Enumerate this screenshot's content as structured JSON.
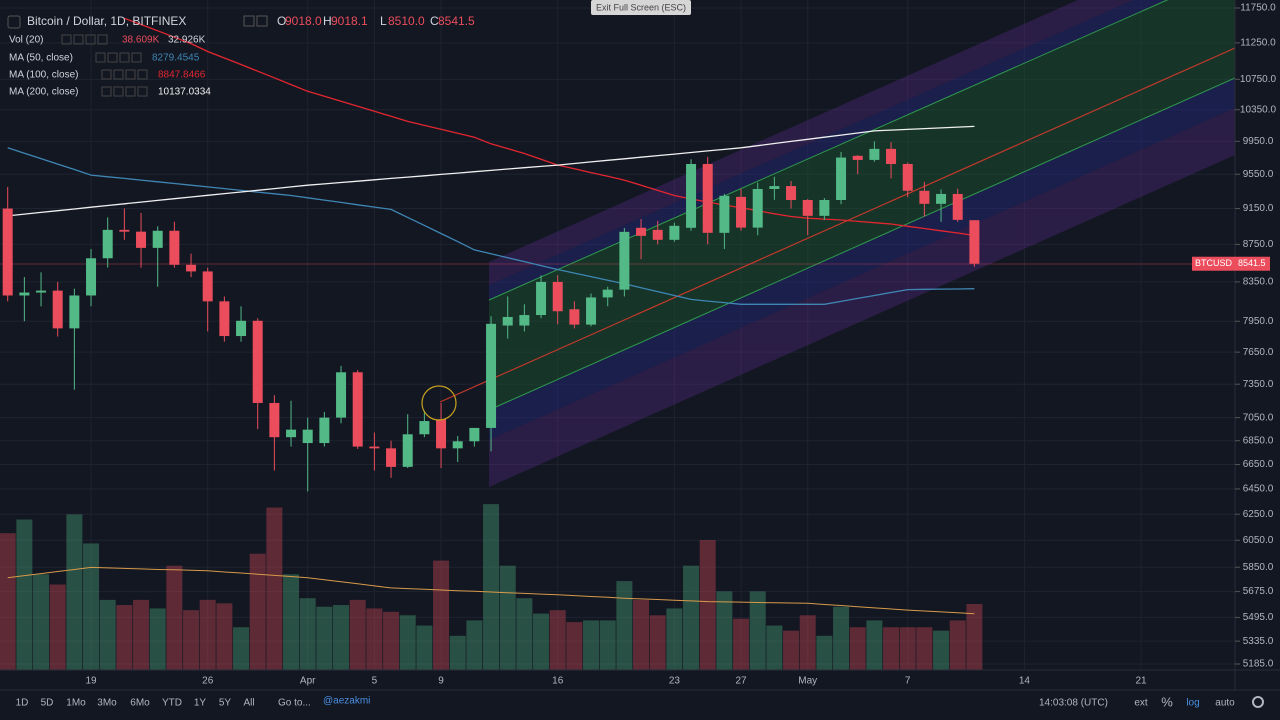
{
  "header": {
    "title": "Bitcoin / Dollar, 1D, BITFINEX",
    "ohlc": [
      {
        "k": "O",
        "v": "9018.0"
      },
      {
        "k": "H",
        "v": "9018.1"
      },
      {
        "k": "L",
        "v": "8510.0"
      },
      {
        "k": "C",
        "v": "8541.5"
      }
    ]
  },
  "exit_label": "Exit Full Screen (ESC)",
  "toolbar": {
    "ranges": [
      "1D",
      "5D",
      "1Mo",
      "3Mo",
      "6Mo",
      "YTD",
      "1Y",
      "5Y",
      "All"
    ],
    "goto": "Go to...",
    "user": "@aezakmi",
    "time": "14:03:08 (UTC)",
    "options": [
      "ext",
      "%",
      "log",
      "auto"
    ]
  },
  "chart_data": {
    "type": "candlestick",
    "log": true,
    "grid": true,
    "up_color": "#53b987",
    "down_color": "#eb4d5c",
    "price_tag": "BTCUSD",
    "categories": [
      null,
      null,
      null,
      null,
      null,
      "19",
      null,
      null,
      null,
      null,
      null,
      null,
      "26",
      null,
      null,
      null,
      null,
      null,
      "Apr",
      null,
      null,
      null,
      "5",
      null,
      null,
      null,
      "9",
      null,
      null,
      null,
      null,
      null,
      null,
      "16",
      null,
      null,
      null,
      null,
      null,
      null,
      "23",
      null,
      null,
      null,
      "27",
      null,
      null,
      null,
      "May",
      null,
      null,
      null,
      null,
      null,
      "7",
      null,
      null,
      null,
      null,
      null,
      null,
      "14",
      null,
      null,
      null,
      null,
      null,
      null,
      "21",
      null,
      null,
      null,
      null
    ],
    "open": [
      9150,
      8210,
      8240,
      8260,
      7880,
      8210,
      8600,
      8910,
      8890,
      8712,
      8900,
      8530,
      8460,
      8150,
      7805,
      7955,
      7180,
      6880,
      6830,
      6830,
      7050,
      7460,
      6800,
      6785,
      6630,
      6905,
      7035,
      6785,
      6845,
      6960,
      7908,
      7908,
      8012,
      8350,
      8070,
      7917,
      8190,
      8270,
      8933,
      8910,
      8800,
      8933,
      9673,
      8877,
      9284,
      8935,
      9376,
      9410,
      9248,
      9067,
      9248,
      9772,
      9722,
      9857,
      9673,
      9355,
      9204,
      9318,
      9018,
      null,
      null,
      null,
      null,
      null,
      null,
      null,
      null,
      null,
      null,
      null,
      null,
      null,
      null
    ],
    "high": [
      9400,
      8400,
      8450,
      8350,
      8280,
      8700,
      9050,
      9150,
      9100,
      8950,
      9000,
      8650,
      8500,
      8200,
      8100,
      7980,
      7250,
      7200,
      7050,
      7100,
      7520,
      7480,
      6920,
      6850,
      7080,
      7110,
      7180,
      6890,
      6960,
      8000,
      8200,
      8120,
      8420,
      8420,
      8150,
      8230,
      8300,
      8930,
      9030,
      9010,
      8990,
      9730,
      9760,
      9320,
      9380,
      9450,
      9520,
      9470,
      9260,
      9270,
      9820,
      9780,
      9950,
      9940,
      9690,
      9460,
      9370,
      9380,
      9018.1,
      null,
      null,
      null,
      null,
      null,
      null,
      null,
      null,
      null,
      null,
      null,
      null,
      null,
      null
    ],
    "low": [
      8150,
      7950,
      8100,
      7800,
      7300,
      8100,
      8500,
      8800,
      8500,
      8300,
      8500,
      8400,
      7850,
      7750,
      7750,
      6950,
      6600,
      6800,
      6430,
      6800,
      7000,
      6780,
      6600,
      6540,
      6620,
      6880,
      6620,
      6670,
      6800,
      6760,
      7780,
      7850,
      7980,
      7920,
      7880,
      7900,
      8100,
      8200,
      8590,
      8750,
      8780,
      8900,
      8750,
      8700,
      8900,
      8850,
      9250,
      9150,
      8850,
      9020,
      9200,
      9550,
      9700,
      9500,
      9280,
      9060,
      9000,
      9000,
      8510,
      null,
      null,
      null,
      null,
      null,
      null,
      null,
      null,
      null,
      null,
      null,
      null,
      null,
      null
    ],
    "close": [
      8210,
      8240,
      8260,
      7880,
      8210,
      8600,
      8910,
      8890,
      8712,
      8900,
      8530,
      8460,
      8150,
      7805,
      7955,
      7180,
      6880,
      6945,
      6945,
      7050,
      7460,
      6800,
      6785,
      6630,
      6905,
      7020,
      6785,
      6845,
      6960,
      7925,
      7993,
      8012,
      8350,
      8050,
      7917,
      8190,
      8270,
      8888,
      8844,
      8800,
      8955,
      9673,
      8877,
      9297,
      8935,
      9376,
      9410,
      9248,
      9067,
      9248,
      9751,
      9722,
      9857,
      9673,
      9355,
      9204,
      9318,
      9022,
      8541.5,
      null,
      null,
      null,
      null,
      null,
      null,
      null,
      null,
      null,
      null,
      null,
      null,
      null,
      null
    ],
    "ylim": [
      5185,
      11750
    ],
    "yticks": [
      {
        "value": 11750,
        "label": "11750.0"
      },
      {
        "value": 11250,
        "label": "11250.0"
      },
      {
        "value": 10750,
        "label": "10750.0"
      },
      {
        "value": 10350,
        "label": "10350.0"
      },
      {
        "value": 9950,
        "label": "9950.0"
      },
      {
        "value": 9550,
        "label": "9550.0"
      },
      {
        "value": 9150,
        "label": "9150.0"
      },
      {
        "value": 8750,
        "label": "8750.0"
      },
      {
        "value": 8350,
        "label": "8350.0"
      },
      {
        "value": 7950,
        "label": "7950.0"
      },
      {
        "value": 7650,
        "label": "7650.0"
      },
      {
        "value": 7350,
        "label": "7350.0"
      },
      {
        "value": 7050,
        "label": "7050.0"
      },
      {
        "value": 6850,
        "label": "6850.0"
      },
      {
        "value": 6650,
        "label": "6650.0"
      },
      {
        "value": 6450,
        "label": "6450.0"
      },
      {
        "value": 6250,
        "label": "6250.0"
      },
      {
        "value": 6050,
        "label": "6050.0"
      },
      {
        "value": 5850,
        "label": "5850.0"
      },
      {
        "value": 5675,
        "label": "5675.0"
      },
      {
        "value": 5495,
        "label": "5495.0"
      },
      {
        "value": 5335,
        "label": "5335.0"
      },
      {
        "value": 5185,
        "label": "5185.0"
      }
    ],
    "volume": {
      "name": "Vol (20)",
      "value_label": "38.609K",
      "ma_label": "32.926K",
      "ma_color": "#d89a4a",
      "vlim": [
        0,
        100
      ],
      "values": [
        80,
        88,
        56,
        50,
        91,
        74,
        41,
        38,
        41,
        36,
        61,
        35,
        41,
        39,
        25,
        68,
        95,
        56,
        42,
        37,
        38,
        41,
        36,
        34,
        32,
        26,
        64,
        20,
        29,
        97,
        61,
        42,
        33,
        35,
        28,
        29,
        29,
        52,
        41,
        32,
        36,
        61,
        76,
        46,
        30,
        46,
        26,
        23,
        32,
        20,
        37,
        25,
        29,
        25,
        25,
        25,
        23,
        29,
        38.609,
        null,
        null,
        null,
        null,
        null,
        null,
        null,
        null,
        null,
        null,
        null,
        null,
        null,
        null
      ],
      "ma_values": [
        54,
        55.2,
        56.4,
        57.6,
        58.8,
        60,
        59.7,
        59.4,
        59.1,
        58.8,
        58.6,
        58.3,
        58,
        57.3,
        56.7,
        56,
        55.3,
        54.7,
        54,
        52.8,
        51.6,
        50.4,
        49.2,
        48,
        47.6,
        47.2,
        46.8,
        46.4,
        46,
        45.6,
        45.2,
        44.8,
        44.4,
        44,
        43.5,
        43,
        42.5,
        42,
        41.6,
        41.2,
        40.8,
        40.4,
        40,
        39.8,
        39.7,
        39.5,
        39.3,
        39.2,
        39,
        38.3,
        37.7,
        37,
        36.3,
        35.7,
        35,
        34.5,
        34,
        33.5,
        32.926,
        null,
        null,
        null,
        null,
        null,
        null,
        null,
        null,
        null,
        null,
        null,
        null,
        null,
        null
      ]
    },
    "series": [
      {
        "name": "MA (50, close)",
        "color": "#3f86b4",
        "last_label": "8279.4545",
        "values": [
          9870,
          9804,
          9738,
          9672,
          9606,
          9540,
          9520,
          9500,
          9480,
          9460,
          9440,
          9420,
          9400,
          9380,
          9360,
          9340,
          9320,
          9300,
          9273,
          9247,
          9220,
          9193,
          9167,
          9140,
          9050,
          8960,
          8870,
          8780,
          8690,
          8648,
          8606,
          8564,
          8522,
          8480,
          8442,
          8405,
          8367,
          8330,
          8290,
          8250,
          8210,
          8170,
          8153,
          8137,
          8120,
          8120,
          8120,
          8120,
          8120,
          8120,
          8150,
          8180,
          8210,
          8240,
          8270,
          8273,
          8275,
          8277,
          8279.4545,
          null,
          null,
          null,
          null,
          null,
          null,
          null,
          null,
          null,
          null,
          null,
          null,
          null,
          null
        ]
      },
      {
        "name": "MA (100, close)",
        "color": "#e3262f",
        "last_label": "8847.8466",
        "values": [
          null,
          null,
          null,
          null,
          null,
          null,
          null,
          11600,
          11510,
          11420,
          11330,
          11240,
          11130,
          11040,
          10950,
          10860,
          10770,
          10680,
          10590,
          10525,
          10460,
          10395,
          10330,
          10265,
          10200,
          10150,
          10100,
          10050,
          10000,
          9920,
          9860,
          9800,
          9730,
          9660,
          9615,
          9570,
          9525,
          9480,
          9420,
          9360,
          9300,
          9260,
          9225,
          9190,
          9160,
          9125,
          9090,
          9060,
          9040,
          9030,
          9020,
          9005,
          8990,
          8975,
          8950,
          8925,
          8900,
          8875,
          8847.8466,
          null,
          null,
          null,
          null,
          null,
          null,
          null,
          null,
          null,
          null,
          null,
          null,
          null,
          null
        ]
      },
      {
        "name": "MA (200, close)",
        "color": "#f0f0f0",
        "last_label": "10137.0334",
        "values": [
          9067,
          9087,
          9106,
          9126,
          9145,
          9165,
          9185,
          9204,
          9224,
          9243,
          9263,
          9283,
          9302,
          9322,
          9341,
          9361,
          9381,
          9400,
          9420,
          9436,
          9452,
          9468,
          9484,
          9500,
          9516,
          9532,
          9548,
          9564,
          9580,
          9596,
          9612,
          9628,
          9644,
          9660,
          9679,
          9698,
          9717,
          9736,
          9755,
          9774,
          9793,
          9813,
          9832,
          9851,
          9870,
          9896,
          9923,
          9949,
          9975,
          10001,
          10028,
          10054,
          10080,
          10090,
          10099,
          10109,
          10118,
          10128,
          10137.0334,
          null,
          null,
          null,
          null,
          null,
          null,
          null,
          null,
          null,
          null,
          null,
          null,
          null,
          null
        ]
      }
    ]
  }
}
